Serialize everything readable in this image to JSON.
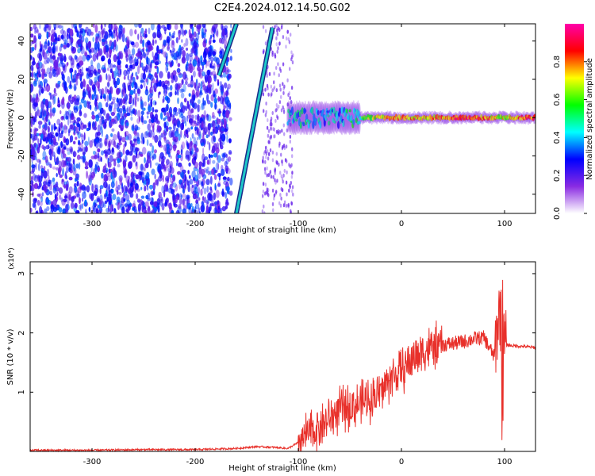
{
  "title": "C2E4.2024.012.14.50.G02",
  "colors": {
    "snr_line": "#e8302a",
    "spectrum_base": "#8a2be2",
    "frame": "#000000"
  },
  "chart_data": [
    {
      "type": "heatmap",
      "xlabel": "Height of straight line (km)",
      "ylabel": "Frequency (Hz)",
      "xlim": [
        -360,
        130
      ],
      "ylim": [
        -50,
        49
      ],
      "xticks": [
        -300,
        -200,
        -100,
        0,
        100
      ],
      "xtick_labels": [
        "-300",
        "-200",
        "-100",
        "0",
        "100"
      ],
      "yticks": [
        -40,
        -20,
        0,
        20,
        40
      ],
      "ytick_labels": [
        "-40",
        "-20",
        "0",
        "20",
        "40"
      ],
      "colorbar": {
        "label": "Normalized spectral amplitude",
        "range": [
          0,
          1
        ],
        "ticks": [
          0.0,
          0.2,
          0.4,
          0.6,
          0.8
        ],
        "tick_labels": [
          "0.0",
          "0.2",
          "0.4",
          "0.6",
          "0.8"
        ],
        "colormap": [
          "#ffffff",
          "#8a2be2",
          "#0000ff",
          "#00ffff",
          "#00ff00",
          "#ffff00",
          "#ff0000",
          "#ff00aa"
        ]
      },
      "features": {
        "noise_region_x": [
          -360,
          -175
        ],
        "diagonal_lines": [
          {
            "x_start": -160,
            "y_start": -50,
            "x_end": -125,
            "y_end": 47
          },
          {
            "x_start": -177,
            "y_start": 22,
            "x_end": -160,
            "y_end": 49
          }
        ],
        "carrier_line": {
          "x_start": -110,
          "x_end": 130,
          "frequency": 0,
          "amplitude_at_x": [
            [
              -110,
              0.45
            ],
            [
              -80,
              0.45
            ],
            [
              -60,
              0.4
            ],
            [
              -40,
              0.55
            ],
            [
              -20,
              0.75
            ],
            [
              0,
              0.8
            ],
            [
              20,
              0.75
            ],
            [
              40,
              0.8
            ],
            [
              60,
              0.9
            ],
            [
              80,
              0.8
            ],
            [
              100,
              0.7
            ],
            [
              120,
              0.85
            ]
          ]
        }
      }
    },
    {
      "type": "line",
      "xlabel": "Height of straight line (km)",
      "ylabel": "SNR (10 * v/v)",
      "y_multiplier": "(x10⁴)",
      "xlim": [
        -360,
        130
      ],
      "ylim": [
        0,
        3.2
      ],
      "xticks": [
        -300,
        -200,
        -100,
        0,
        100
      ],
      "xtick_labels": [
        "-300",
        "-200",
        "-100",
        "0",
        "100"
      ],
      "yticks": [
        1,
        2,
        3
      ],
      "ytick_labels": [
        "1",
        "2",
        "3"
      ],
      "series": [
        {
          "values_unit": "x10^4",
          "x": [
            -360,
            -300,
            -250,
            -200,
            -160,
            -140,
            -125,
            -110,
            -100,
            -90,
            -80,
            -70,
            -60,
            -50,
            -40,
            -30,
            -20,
            -10,
            0,
            10,
            20,
            30,
            40,
            50,
            60,
            70,
            80,
            90,
            95,
            100,
            110,
            120,
            130
          ],
          "y": [
            0.02,
            0.02,
            0.03,
            0.03,
            0.05,
            0.08,
            0.07,
            0.05,
            0.15,
            0.3,
            0.4,
            0.55,
            0.7,
            0.75,
            0.8,
            0.9,
            1.0,
            1.25,
            1.35,
            1.55,
            1.7,
            1.75,
            1.8,
            1.82,
            1.85,
            1.9,
            1.92,
            1.6,
            2.4,
            1.8,
            1.78,
            1.77,
            1.75
          ]
        }
      ]
    }
  ]
}
